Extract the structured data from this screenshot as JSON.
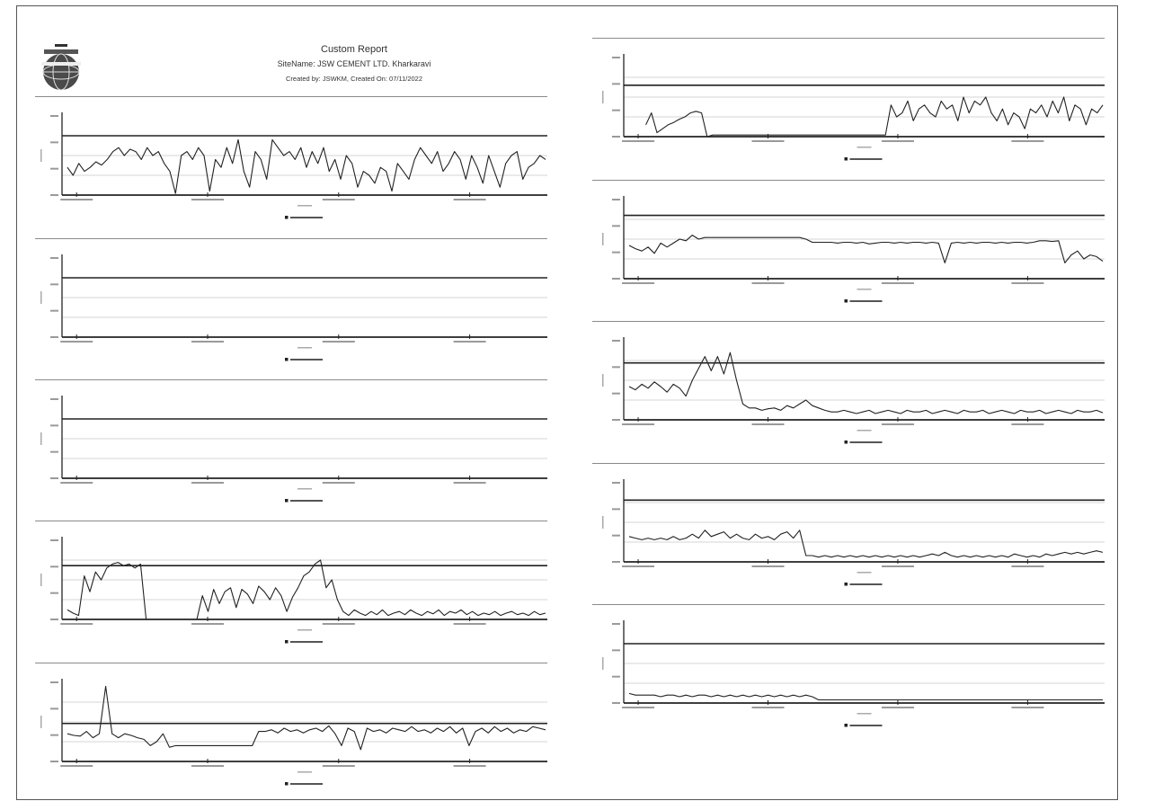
{
  "header": {
    "title": "Custom Report",
    "site_name": "SiteName: JSW CEMENT LTD. Kharkaravi",
    "created_by": "Created by: JSWKM, Created On: 07/11/2022"
  },
  "colors": {
    "line": "#222222",
    "grid": "#c8c8c8",
    "separator": "#8a8a8a",
    "page_border": "#555555"
  },
  "chart_data": [
    {
      "type": "line",
      "ylim": [
        0,
        1
      ],
      "limit": 0.75,
      "y": [
        0.35,
        0.25,
        0.4,
        0.3,
        0.35,
        0.42,
        0.38,
        0.45,
        0.55,
        0.6,
        0.5,
        0.58,
        0.55,
        0.45,
        0.6,
        0.5,
        0.55,
        0.4,
        0.3,
        0.02,
        0.5,
        0.55,
        0.45,
        0.6,
        0.5,
        0.05,
        0.45,
        0.35,
        0.6,
        0.4,
        0.7,
        0.3,
        0.1,
        0.55,
        0.45,
        0.2,
        0.7,
        0.6,
        0.5,
        0.55,
        0.45,
        0.6,
        0.35,
        0.55,
        0.4,
        0.6,
        0.3,
        0.45,
        0.2,
        0.5,
        0.4,
        0.1,
        0.3,
        0.25,
        0.15,
        0.35,
        0.3,
        0.05,
        0.4,
        0.3,
        0.2,
        0.45,
        0.6,
        0.5,
        0.4,
        0.55,
        0.3,
        0.4,
        0.55,
        0.45,
        0.2,
        0.5,
        0.35,
        0.15,
        0.5,
        0.3,
        0.1,
        0.4,
        0.5,
        0.55,
        0.2,
        0.35,
        0.4,
        0.5,
        0.45
      ]
    },
    {
      "type": "line",
      "ylim": [
        0,
        1
      ],
      "limit": 0.75,
      "y": []
    },
    {
      "type": "line",
      "ylim": [
        0,
        1
      ],
      "limit": 0.75,
      "y": []
    },
    {
      "type": "line",
      "ylim": [
        0,
        1
      ],
      "limit": 0.68,
      "y": [
        0.12,
        0.08,
        0.05,
        0.55,
        0.35,
        0.6,
        0.5,
        0.65,
        0.7,
        0.72,
        0.68,
        0.7,
        0.65,
        0.7,
        0.0,
        null,
        null,
        null,
        null,
        null,
        null,
        null,
        null,
        0.0,
        0.3,
        0.1,
        0.38,
        0.2,
        0.35,
        0.4,
        0.15,
        0.38,
        0.32,
        0.2,
        0.42,
        0.35,
        0.25,
        0.4,
        0.3,
        0.1,
        0.28,
        0.4,
        0.55,
        0.6,
        0.7,
        0.75,
        0.4,
        0.5,
        0.25,
        0.1,
        0.05,
        0.12,
        0.08,
        0.05,
        0.1,
        0.06,
        0.12,
        0.05,
        0.08,
        0.1,
        0.06,
        0.12,
        0.08,
        0.05,
        0.1,
        0.07,
        0.12,
        0.05,
        0.1,
        0.08,
        0.12,
        0.06,
        0.1,
        0.05,
        0.08,
        0.06,
        0.1,
        0.05,
        0.08,
        0.1,
        0.06,
        0.08,
        0.05,
        0.1,
        0.06,
        0.08
      ]
    },
    {
      "type": "line",
      "ylim": [
        0,
        1
      ],
      "limit": 0.48,
      "y": [
        0.35,
        0.33,
        0.32,
        0.38,
        0.3,
        0.35,
        0.95,
        0.35,
        0.3,
        0.35,
        0.33,
        0.3,
        0.28,
        0.2,
        0.25,
        0.35,
        0.18,
        0.2,
        0.2,
        0.2,
        0.2,
        0.2,
        0.2,
        0.2,
        0.2,
        0.2,
        0.2,
        0.2,
        0.2,
        0.2,
        0.38,
        0.38,
        0.4,
        0.36,
        0.42,
        0.38,
        0.4,
        0.36,
        0.4,
        0.42,
        0.38,
        0.45,
        0.35,
        0.2,
        0.42,
        0.38,
        0.15,
        0.42,
        0.38,
        0.4,
        0.36,
        0.42,
        0.4,
        0.38,
        0.44,
        0.38,
        0.4,
        0.36,
        0.42,
        0.38,
        0.44,
        0.36,
        0.42,
        0.2,
        0.38,
        0.42,
        0.36,
        0.44,
        0.38,
        0.42,
        0.36,
        0.4,
        0.38,
        0.44,
        0.42,
        0.4
      ]
    },
    {
      "type": "line",
      "ylim": [
        0,
        1
      ],
      "limit": 0.65,
      "y": [
        null,
        null,
        null,
        0.15,
        0.3,
        0.05,
        0.1,
        0.15,
        0.18,
        0.22,
        0.25,
        0.3,
        0.32,
        0.3,
        0.0,
        0.02,
        0.02,
        0.02,
        0.02,
        0.02,
        0.02,
        0.02,
        0.02,
        0.02,
        0.02,
        0.02,
        0.02,
        0.02,
        0.02,
        0.02,
        0.02,
        0.02,
        0.02,
        0.02,
        0.02,
        0.02,
        0.02,
        0.02,
        0.02,
        0.02,
        0.02,
        0.02,
        0.02,
        0.02,
        0.02,
        0.02,
        0.02,
        0.4,
        0.25,
        0.3,
        0.45,
        0.2,
        0.35,
        0.4,
        0.3,
        0.25,
        0.45,
        0.35,
        0.4,
        0.2,
        0.5,
        0.3,
        0.45,
        0.4,
        0.5,
        0.3,
        0.2,
        0.35,
        0.15,
        0.3,
        0.25,
        0.1,
        0.35,
        0.3,
        0.4,
        0.25,
        0.45,
        0.3,
        0.5,
        0.2,
        0.4,
        0.35,
        0.15,
        0.35,
        0.3,
        0.4
      ]
    },
    {
      "type": "line",
      "ylim": [
        0,
        1
      ],
      "limit": 0.8,
      "y": [
        0.42,
        0.38,
        0.35,
        0.4,
        0.32,
        0.45,
        0.4,
        0.45,
        0.5,
        0.48,
        0.55,
        0.5,
        0.52,
        0.52,
        0.52,
        0.52,
        0.52,
        0.52,
        0.52,
        0.52,
        0.52,
        0.52,
        0.52,
        0.52,
        0.52,
        0.52,
        0.52,
        0.52,
        0.5,
        0.46,
        0.46,
        0.46,
        0.46,
        0.45,
        0.46,
        0.46,
        0.45,
        0.46,
        0.44,
        0.45,
        0.46,
        0.46,
        0.45,
        0.46,
        0.45,
        0.46,
        0.46,
        0.45,
        0.46,
        0.45,
        0.2,
        0.45,
        0.46,
        0.45,
        0.46,
        0.45,
        0.46,
        0.46,
        0.45,
        0.46,
        0.45,
        0.46,
        0.46,
        0.45,
        0.46,
        0.48,
        0.48,
        0.47,
        0.48,
        0.2,
        0.3,
        0.35,
        0.25,
        0.3,
        0.28,
        0.22
      ]
    },
    {
      "type": "line",
      "ylim": [
        0,
        1
      ],
      "limit": 0.72,
      "y": [
        0.42,
        0.38,
        0.45,
        0.4,
        0.48,
        0.42,
        0.35,
        0.45,
        0.4,
        0.3,
        0.5,
        0.65,
        0.8,
        0.62,
        0.8,
        0.58,
        0.85,
        0.5,
        0.2,
        0.15,
        0.15,
        0.12,
        0.14,
        0.15,
        0.12,
        0.18,
        0.15,
        0.2,
        0.25,
        0.18,
        0.15,
        0.12,
        0.1,
        0.1,
        0.12,
        0.1,
        0.08,
        0.1,
        0.12,
        0.08,
        0.1,
        0.12,
        0.1,
        0.08,
        0.12,
        0.1,
        0.1,
        0.12,
        0.08,
        0.1,
        0.12,
        0.1,
        0.08,
        0.12,
        0.1,
        0.1,
        0.12,
        0.08,
        0.1,
        0.12,
        0.1,
        0.08,
        0.12,
        0.1,
        0.1,
        0.12,
        0.08,
        0.1,
        0.12,
        0.1,
        0.08,
        0.12,
        0.1,
        0.1,
        0.12,
        0.09
      ]
    },
    {
      "type": "line",
      "ylim": [
        0,
        1
      ],
      "limit": 0.78,
      "y": [
        0.32,
        0.3,
        0.28,
        0.3,
        0.28,
        0.3,
        0.28,
        0.32,
        0.28,
        0.3,
        0.35,
        0.3,
        0.4,
        0.32,
        0.35,
        0.38,
        0.3,
        0.35,
        0.3,
        0.28,
        0.35,
        0.3,
        0.32,
        0.28,
        0.35,
        0.38,
        0.3,
        0.4,
        0.08,
        0.08,
        0.06,
        0.08,
        0.06,
        0.08,
        0.06,
        0.08,
        0.06,
        0.08,
        0.06,
        0.08,
        0.06,
        0.08,
        0.06,
        0.08,
        0.06,
        0.08,
        0.06,
        0.08,
        0.1,
        0.08,
        0.12,
        0.08,
        0.06,
        0.08,
        0.06,
        0.08,
        0.06,
        0.08,
        0.06,
        0.08,
        0.06,
        0.1,
        0.08,
        0.06,
        0.08,
        0.06,
        0.1,
        0.08,
        0.1,
        0.12,
        0.1,
        0.12,
        0.1,
        0.12,
        0.14,
        0.12
      ]
    },
    {
      "type": "line",
      "ylim": [
        0,
        1
      ],
      "limit": 0.75,
      "y": [
        0.12,
        0.1,
        0.1,
        0.1,
        0.1,
        0.08,
        0.1,
        0.1,
        0.08,
        0.1,
        0.08,
        0.1,
        0.1,
        0.08,
        0.1,
        0.08,
        0.1,
        0.08,
        0.1,
        0.08,
        0.1,
        0.08,
        0.1,
        0.08,
        0.1,
        0.08,
        0.1,
        0.08,
        0.1,
        0.08,
        0.04,
        0.04,
        0.04,
        0.04,
        0.04,
        0.04,
        0.04,
        0.04,
        0.04,
        0.04,
        0.04,
        0.04,
        0.04,
        0.04,
        0.04,
        0.04,
        0.04,
        0.04,
        0.04,
        0.04,
        0.04,
        0.04,
        0.04,
        0.04,
        0.04,
        0.04,
        0.04,
        0.04,
        0.04,
        0.04,
        0.04,
        0.04,
        0.04,
        0.04,
        0.04,
        0.04,
        0.04,
        0.04,
        0.04,
        0.04,
        0.04,
        0.04,
        0.04,
        0.04,
        0.04,
        0.04
      ]
    }
  ]
}
